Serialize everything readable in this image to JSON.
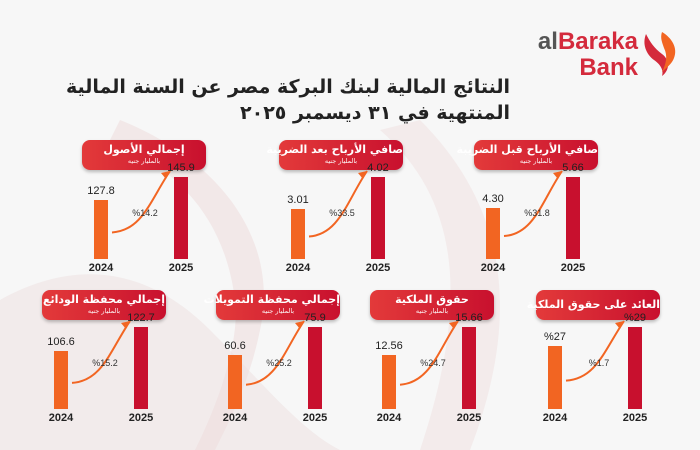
{
  "logo": {
    "brand_al": "al",
    "brand_baraka": "Baraka",
    "brand_bank": "Bank"
  },
  "title": {
    "line1": "النتائج المالية لبنك البركة مصر عن السنة المالية",
    "line2": "المنتهية في ٣١ ديسمبر ٢٠٢٥"
  },
  "colors": {
    "bar_2024": "#f26522",
    "bar_2025": "#c8102e",
    "pill": "#d42a3c",
    "arrow": "#f26522"
  },
  "chart_data": [
    {
      "type": "bar",
      "title": "صافي الأرباح قبل الضريبة",
      "unit": "بالمليار جنيه",
      "categories": [
        "2024",
        "2025"
      ],
      "labels": [
        "4.30",
        "5.66"
      ],
      "values": [
        4.3,
        5.66
      ],
      "change": "%31.8"
    },
    {
      "type": "bar",
      "title": "صافي الأرباح بعد الضريبة",
      "unit": "بالمليار جنيه",
      "categories": [
        "2024",
        "2025"
      ],
      "labels": [
        "3.01",
        "4.02"
      ],
      "values": [
        3.01,
        4.02
      ],
      "change": "%33.5"
    },
    {
      "type": "bar",
      "title": "إجمالي الأصول",
      "unit": "بالمليار جنيه",
      "categories": [
        "2024",
        "2025"
      ],
      "labels": [
        "127.8",
        "145.9"
      ],
      "values": [
        127.8,
        145.9
      ],
      "change": "%14.2"
    },
    {
      "type": "bar",
      "title": "العائد على حقوق الملكية",
      "unit": "",
      "categories": [
        "2024",
        "2025"
      ],
      "labels": [
        "%27",
        "%29"
      ],
      "values": [
        27,
        29
      ],
      "change": "%1.7"
    },
    {
      "type": "bar",
      "title": "حقوق الملكية",
      "unit": "بالمليار جنيه",
      "categories": [
        "2024",
        "2025"
      ],
      "labels": [
        "12.56",
        "15.66"
      ],
      "values": [
        12.56,
        15.66
      ],
      "change": "%24.7"
    },
    {
      "type": "bar",
      "title": "إجمالي محفظة التمويلات",
      "unit": "بالمليار جنيه",
      "categories": [
        "2024",
        "2025"
      ],
      "labels": [
        "60.6",
        "75.9"
      ],
      "values": [
        60.6,
        75.9
      ],
      "change": "%25.2"
    },
    {
      "type": "bar",
      "title": "إجمالي محفظة الودائع",
      "unit": "بالمليار جنيه",
      "categories": [
        "2024",
        "2025"
      ],
      "labels": [
        "106.6",
        "122.7"
      ],
      "values": [
        106.6,
        122.7
      ],
      "change": "%15.2"
    }
  ]
}
